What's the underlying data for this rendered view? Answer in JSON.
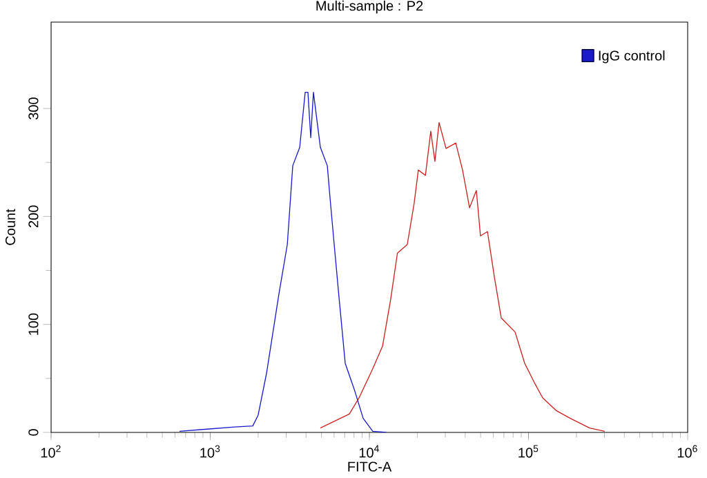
{
  "chart_data": {
    "type": "line",
    "title": "Multi-sample : P2",
    "xlabel": "FITC-A",
    "ylabel": "Count",
    "log": "x",
    "xlim": [
      100,
      1000000
    ],
    "ylim": [
      0,
      380
    ],
    "xticks": [
      {
        "value": 100,
        "label": "10$^{2}$"
      },
      {
        "value": 1000,
        "label": "10$^{3}$"
      },
      {
        "value": 10000,
        "label": "10$^{4}$"
      },
      {
        "value": 100000,
        "label": "10$^{5}$"
      },
      {
        "value": 1000000,
        "label": "10$^{6}$"
      }
    ],
    "yticks": [
      0,
      100,
      200,
      300
    ],
    "legend": "top right",
    "grid": false,
    "marker": "none",
    "line_style": "solid",
    "series": [
      {
        "name": "IgG control",
        "color": "#1a1acc",
        "x": [
          641,
          955,
          1426,
          1850,
          2000,
          2260,
          2700,
          3050,
          3300,
          3650,
          3950,
          4110,
          4280,
          4450,
          4920,
          5440,
          5660,
          6010,
          6380,
          7050,
          8110,
          9140,
          10500,
          12800
        ],
        "values": [
          1,
          3,
          5,
          6,
          16,
          55,
          128,
          174,
          247,
          264,
          315,
          315,
          273,
          315,
          264,
          247,
          217,
          174,
          132,
          64,
          38,
          13,
          1,
          0
        ]
      },
      {
        "color": "#cc2222",
        "x": [
          4920,
          7480,
          8610,
          10500,
          12100,
          13600,
          15000,
          17300,
          19100,
          20300,
          22500,
          24300,
          25800,
          27400,
          30300,
          34900,
          38500,
          42600,
          47000,
          49900,
          55200,
          61000,
          67400,
          82300,
          94600,
          108900,
          122700,
          149900,
          183000,
          242000,
          301000
        ],
        "values": [
          4,
          17,
          32,
          59,
          80,
          123,
          166,
          174,
          212,
          243,
          238,
          279,
          251,
          287,
          263,
          268,
          243,
          208,
          224,
          182,
          186,
          144,
          106,
          93,
          64,
          46,
          32,
          20,
          13,
          4,
          1
        ]
      }
    ]
  }
}
